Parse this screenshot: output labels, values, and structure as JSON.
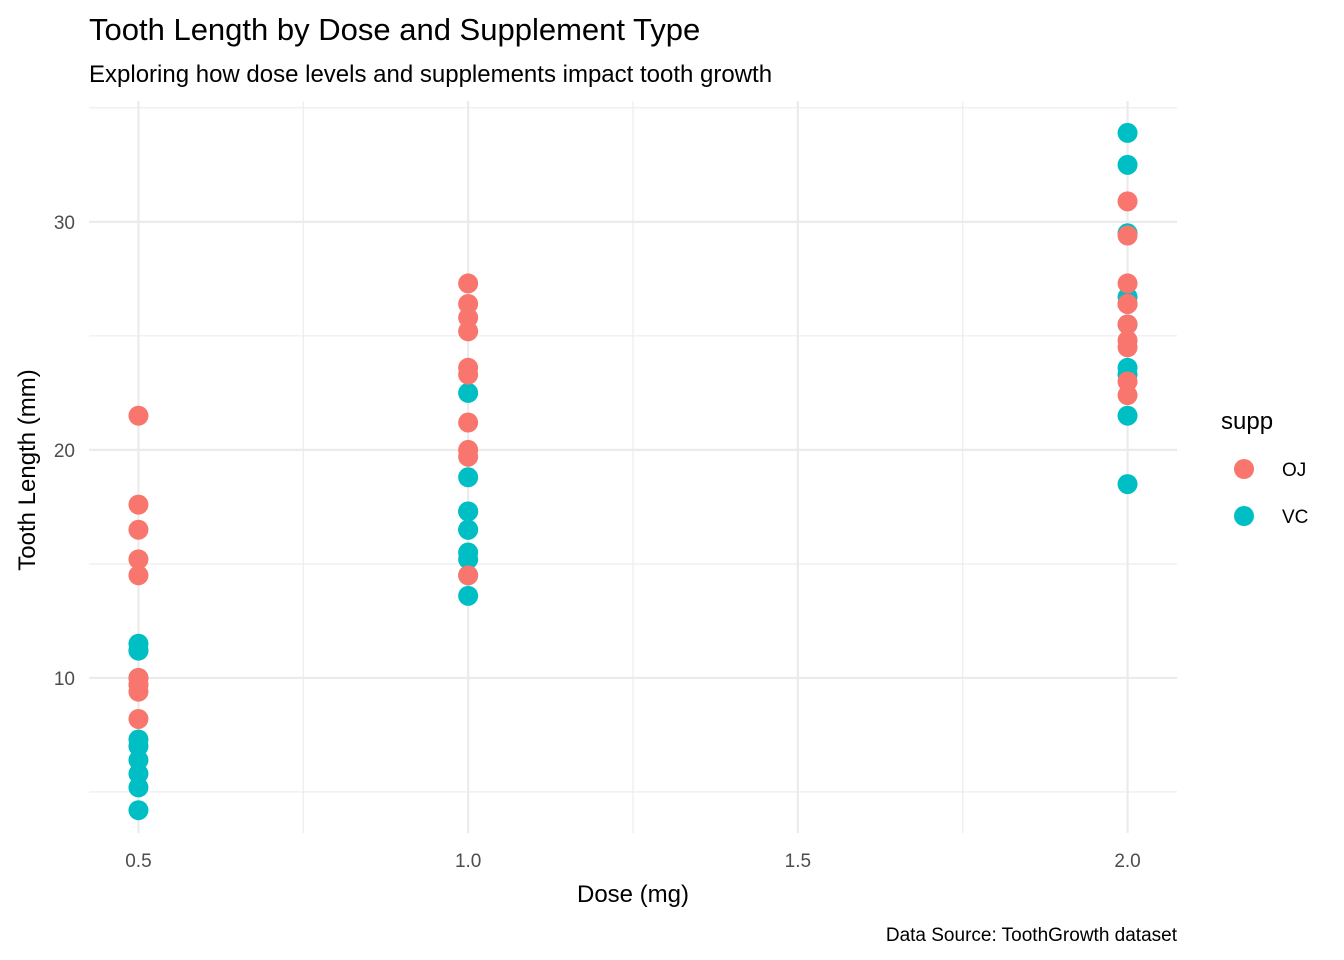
{
  "chart_data": {
    "type": "scatter",
    "title": "Tooth Length by Dose and Supplement Type",
    "subtitle": "Exploring how dose levels and supplements impact tooth growth",
    "xlabel": "Dose (mg)",
    "ylabel": "Tooth Length (mm)",
    "caption": "Data Source: ToothGrowth dataset",
    "xlim": [
      0.425,
      2.075
    ],
    "ylim": [
      3.2,
      35.3
    ],
    "x_ticks": [
      0.5,
      1.0,
      1.5,
      2.0
    ],
    "x_tick_labels": [
      "0.5",
      "1.0",
      "1.5",
      "2.0"
    ],
    "y_ticks": [
      10,
      20,
      30
    ],
    "y_tick_labels": [
      "10",
      "20",
      "30"
    ],
    "grid": true,
    "legend": {
      "title": "supp",
      "placement": "right"
    },
    "series": [
      {
        "name": "VC",
        "color": "#00BFC4",
        "points": [
          {
            "x": 0.5,
            "y": 4.2
          },
          {
            "x": 0.5,
            "y": 11.5
          },
          {
            "x": 0.5,
            "y": 7.3
          },
          {
            "x": 0.5,
            "y": 5.8
          },
          {
            "x": 0.5,
            "y": 6.4
          },
          {
            "x": 0.5,
            "y": 10.0
          },
          {
            "x": 0.5,
            "y": 11.2
          },
          {
            "x": 0.5,
            "y": 11.2
          },
          {
            "x": 0.5,
            "y": 5.2
          },
          {
            "x": 0.5,
            "y": 7.0
          },
          {
            "x": 1.0,
            "y": 16.5
          },
          {
            "x": 1.0,
            "y": 16.5
          },
          {
            "x": 1.0,
            "y": 15.2
          },
          {
            "x": 1.0,
            "y": 17.3
          },
          {
            "x": 1.0,
            "y": 22.5
          },
          {
            "x": 1.0,
            "y": 17.3
          },
          {
            "x": 1.0,
            "y": 13.6
          },
          {
            "x": 1.0,
            "y": 14.5
          },
          {
            "x": 1.0,
            "y": 18.8
          },
          {
            "x": 1.0,
            "y": 15.5
          },
          {
            "x": 2.0,
            "y": 23.6
          },
          {
            "x": 2.0,
            "y": 18.5
          },
          {
            "x": 2.0,
            "y": 33.9
          },
          {
            "x": 2.0,
            "y": 25.5
          },
          {
            "x": 2.0,
            "y": 26.4
          },
          {
            "x": 2.0,
            "y": 32.5
          },
          {
            "x": 2.0,
            "y": 26.7
          },
          {
            "x": 2.0,
            "y": 21.5
          },
          {
            "x": 2.0,
            "y": 23.3
          },
          {
            "x": 2.0,
            "y": 29.5
          }
        ]
      },
      {
        "name": "OJ",
        "color": "#F8766D",
        "points": [
          {
            "x": 0.5,
            "y": 15.2
          },
          {
            "x": 0.5,
            "y": 21.5
          },
          {
            "x": 0.5,
            "y": 17.6
          },
          {
            "x": 0.5,
            "y": 9.7
          },
          {
            "x": 0.5,
            "y": 14.5
          },
          {
            "x": 0.5,
            "y": 10.0
          },
          {
            "x": 0.5,
            "y": 8.2
          },
          {
            "x": 0.5,
            "y": 9.4
          },
          {
            "x": 0.5,
            "y": 16.5
          },
          {
            "x": 0.5,
            "y": 9.7
          },
          {
            "x": 1.0,
            "y": 19.7
          },
          {
            "x": 1.0,
            "y": 23.3
          },
          {
            "x": 1.0,
            "y": 23.6
          },
          {
            "x": 1.0,
            "y": 26.4
          },
          {
            "x": 1.0,
            "y": 20.0
          },
          {
            "x": 1.0,
            "y": 25.2
          },
          {
            "x": 1.0,
            "y": 25.8
          },
          {
            "x": 1.0,
            "y": 21.2
          },
          {
            "x": 1.0,
            "y": 14.5
          },
          {
            "x": 1.0,
            "y": 27.3
          },
          {
            "x": 2.0,
            "y": 25.5
          },
          {
            "x": 2.0,
            "y": 26.4
          },
          {
            "x": 2.0,
            "y": 22.4
          },
          {
            "x": 2.0,
            "y": 24.5
          },
          {
            "x": 2.0,
            "y": 24.8
          },
          {
            "x": 2.0,
            "y": 30.9
          },
          {
            "x": 2.0,
            "y": 26.4
          },
          {
            "x": 2.0,
            "y": 27.3
          },
          {
            "x": 2.0,
            "y": 29.4
          },
          {
            "x": 2.0,
            "y": 23.0
          }
        ]
      }
    ]
  }
}
